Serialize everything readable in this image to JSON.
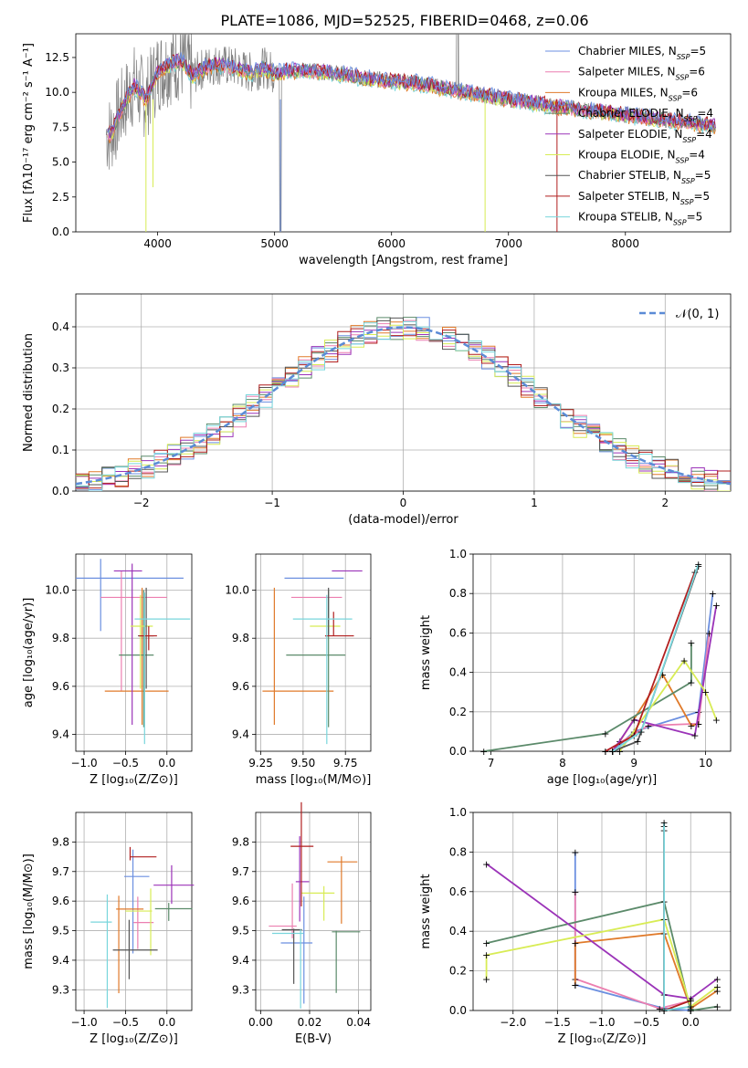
{
  "title": "PLATE=1086, MJD=52525, FIBERID=0468, z=0.06",
  "colors": [
    "#6b8fe0",
    "#ec7fb0",
    "#e07a2a",
    "#5b8a6a",
    "#9b33b8",
    "#d8ec55",
    "#555555",
    "#b11f1f",
    "#78d6dc"
  ],
  "chart_data": [
    {
      "type": "line",
      "name": "spectrum",
      "xlabel": "wavelength [Angstrom, rest frame]",
      "ylabel": "Flux [fλ10⁻¹⁷ erg cm⁻² s⁻¹ A⁻¹]",
      "xlim": [
        3300,
        8900
      ],
      "ylim": [
        0,
        14.2
      ],
      "xticks": [
        "4000",
        "5000",
        "6000",
        "7000",
        "8000"
      ],
      "yticks": [
        "0.0",
        "2.5",
        "5.0",
        "7.5",
        "10.0",
        "12.5"
      ],
      "data_x": [
        3600,
        3700,
        3800,
        3900,
        4000,
        4100,
        4200,
        4300,
        4400,
        4500,
        4600,
        4700,
        4800,
        4900,
        5000,
        5200,
        5400,
        5600,
        5800,
        6000,
        6200,
        6400,
        6600,
        6800,
        7000,
        7200,
        7400,
        7600,
        7800,
        8000,
        8200,
        8400,
        8600,
        8800
      ],
      "data_y": [
        7.0,
        9.0,
        10.5,
        9.5,
        11.5,
        12.0,
        12.3,
        11.2,
        11.8,
        12.0,
        11.9,
        11.7,
        11.4,
        11.8,
        11.4,
        11.6,
        11.5,
        11.3,
        11.0,
        10.8,
        10.7,
        10.4,
        10.1,
        9.8,
        9.5,
        9.3,
        9.0,
        8.8,
        8.6,
        8.4,
        8.2,
        8.0,
        7.8,
        7.6
      ],
      "legend": [
        "Chabrier MILES, N_SSP=5",
        "Salpeter MILES, N_SSP=6",
        "Kroupa MILES, N_SSP=6",
        "Chabrier ELODIE, N_SSP=4",
        "Salpeter ELODIE, N_SSP=4",
        "Kroupa ELODIE, N_SSP=4",
        "Chabrier STELIB, N_SSP=5",
        "Salpeter STELIB, N_SSP=5",
        "Kroupa STELIB, N_SSP=5"
      ]
    },
    {
      "type": "line",
      "name": "residuals",
      "xlabel": "(data-model)/error",
      "ylabel": "Normed distribution",
      "xlim": [
        -2.5,
        2.5
      ],
      "ylim": [
        0,
        0.48
      ],
      "xticks": [
        "−2",
        "−1",
        "0",
        "1",
        "2"
      ],
      "yticks": [
        "0.0",
        "0.1",
        "0.2",
        "0.3",
        "0.4"
      ],
      "legend_label": "𝒩(0, 1)",
      "bins": [
        -2.5,
        -2.4,
        -2.3,
        -2.2,
        -2.1,
        -2.0,
        -1.9,
        -1.8,
        -1.7,
        -1.6,
        -1.5,
        -1.4,
        -1.3,
        -1.2,
        -1.1,
        -1.0,
        -0.9,
        -0.8,
        -0.7,
        -0.6,
        -0.5,
        -0.4,
        -0.3,
        -0.2,
        -0.1,
        0.0,
        0.1,
        0.2,
        0.3,
        0.4,
        0.5,
        0.6,
        0.7,
        0.8,
        0.9,
        1.0,
        1.1,
        1.2,
        1.3,
        1.4,
        1.5,
        1.6,
        1.7,
        1.8,
        1.9,
        2.0,
        2.1,
        2.2,
        2.3,
        2.4
      ]
    },
    {
      "type": "scatter",
      "name": "age-vs-Z",
      "xlabel": "Z [log₁₀(Z/Z⊙)]",
      "ylabel": "age  [log₁₀(age/yr)]",
      "xlim": [
        -1.1,
        0.3
      ],
      "ylim": [
        9.33,
        10.15
      ],
      "xticks": [
        "−1.0",
        "−0.5",
        "0.0"
      ],
      "yticks": [
        "9.4",
        "9.6",
        "9.8",
        "10.0"
      ],
      "points": [
        {
          "x": -0.8,
          "y": 10.05,
          "xerr": [
            0.3,
            1.0
          ],
          "yerr": [
            0.22,
            0.08
          ]
        },
        {
          "x": -0.55,
          "y": 9.97,
          "xerr": [
            0.25,
            0.55
          ],
          "yerr": [
            0.39,
            0.11
          ]
        },
        {
          "x": -0.3,
          "y": 9.58,
          "xerr": [
            0.45,
            0.32
          ],
          "yerr": [
            0.14,
            0.43
          ]
        },
        {
          "x": -0.28,
          "y": 9.73,
          "xerr": [
            0.3,
            0.12
          ],
          "yerr": [
            0.3,
            0.27
          ]
        },
        {
          "x": -0.42,
          "y": 10.08,
          "xerr": [
            0.22,
            0.12
          ],
          "yerr": [
            0.64,
            0.03
          ]
        },
        {
          "x": -0.32,
          "y": 9.85,
          "xerr": [
            0.12,
            0.15
          ],
          "yerr": [
            0.26,
            0.13
          ]
        },
        {
          "x": -0.25,
          "y": 9.81,
          "xerr": [
            0.1,
            0.09
          ],
          "yerr": [
            0.22,
            0.2
          ]
        },
        {
          "x": -0.22,
          "y": 9.81,
          "xerr": [
            0.12,
            0.1
          ],
          "yerr": [
            0.06,
            0.04
          ]
        },
        {
          "x": -0.27,
          "y": 9.88,
          "xerr": [
            0.12,
            0.55
          ],
          "yerr": [
            0.52,
            0.11
          ]
        }
      ]
    },
    {
      "type": "scatter",
      "name": "age-vs-mass",
      "xlabel": "mass [log₁₀(M/M⊙)]",
      "xlim": [
        9.22,
        9.9
      ],
      "ylim": [
        9.33,
        10.15
      ],
      "xticks": [
        "9.25",
        "9.50",
        "9.75"
      ],
      "yticks": [
        "9.4",
        "9.6",
        "9.8",
        "10.0"
      ],
      "points": [
        {
          "x": 9.64,
          "y": 10.05,
          "xerr": [
            0.25,
            0.1
          ],
          "yerr": [
            0.0,
            0.0
          ]
        },
        {
          "x": 9.63,
          "y": 9.97,
          "xerr": [
            0.2,
            0.1
          ],
          "yerr": [
            0.0,
            0.0
          ]
        },
        {
          "x": 9.33,
          "y": 9.58,
          "xerr": [
            0.07,
            0.35
          ],
          "yerr": [
            0.14,
            0.43
          ]
        },
        {
          "x": 9.65,
          "y": 9.73,
          "xerr": [
            0.25,
            0.1
          ],
          "yerr": [
            0.3,
            0.27
          ]
        },
        {
          "x": 9.8,
          "y": 10.08,
          "xerr": [
            0.13,
            0.05
          ],
          "yerr": [
            0.0,
            0.0
          ]
        },
        {
          "x": 9.64,
          "y": 9.85,
          "xerr": [
            0.1,
            0.08
          ],
          "yerr": [
            0.0,
            0.0
          ]
        },
        {
          "x": 9.65,
          "y": 9.81,
          "xerr": [
            0.02,
            0.0
          ],
          "yerr": [
            0.0,
            0.2
          ]
        },
        {
          "x": 9.68,
          "y": 9.81,
          "xerr": [
            0.05,
            0.12
          ],
          "yerr": [
            0.0,
            0.1
          ]
        },
        {
          "x": 9.64,
          "y": 9.88,
          "xerr": [
            0.2,
            0.15
          ],
          "yerr": [
            0.52,
            0.1
          ]
        }
      ]
    },
    {
      "type": "line",
      "name": "massweight-vs-age",
      "xlabel": "age  [log₁₀(age/yr)]",
      "ylabel": "mass weight",
      "xlim": [
        6.75,
        10.35
      ],
      "ylim": [
        0,
        1.0
      ],
      "xticks": [
        "7",
        "8",
        "9",
        "10"
      ],
      "yticks": [
        "0.0",
        "0.2",
        "0.4",
        "0.6",
        "0.8",
        "1.0"
      ]
    },
    {
      "type": "scatter",
      "name": "mass-vs-Z",
      "xlabel": "Z [log₁₀(Z/Z⊙)]",
      "ylabel": "mass [log₁₀(M/M⊙)]",
      "xlim": [
        -1.1,
        0.3
      ],
      "ylim": [
        9.23,
        9.9
      ],
      "xticks": [
        "−1.0",
        "−0.5",
        "0.0"
      ],
      "yticks": [
        "9.3",
        "9.4",
        "9.5",
        "9.6",
        "9.7",
        "9.8"
      ]
    },
    {
      "type": "scatter",
      "name": "mass-vs-EBV",
      "xlabel": "E(B-V)",
      "xlim": [
        -0.002,
        0.045
      ],
      "ylim": [
        9.23,
        9.9
      ],
      "xticks": [
        "0.00",
        "0.02",
        "0.04"
      ],
      "yticks": [
        "9.3",
        "9.4",
        "9.5",
        "9.6",
        "9.7",
        "9.8"
      ]
    },
    {
      "type": "line",
      "name": "massweight-vs-Z",
      "xlabel": "Z [log₁₀(Z/Z⊙)]",
      "ylabel": "mass weight",
      "xlim": [
        -2.45,
        0.45
      ],
      "ylim": [
        0,
        1.0
      ],
      "xticks": [
        "−2.0",
        "−1.5",
        "−1.0",
        "−0.5",
        "0.0"
      ],
      "yticks": [
        "0.0",
        "0.2",
        "0.4",
        "0.6",
        "0.8",
        "1.0"
      ]
    }
  ]
}
